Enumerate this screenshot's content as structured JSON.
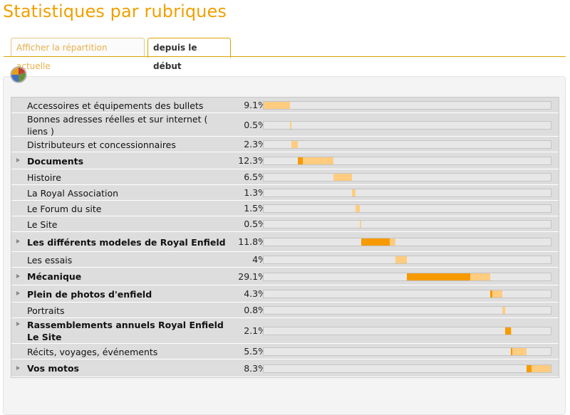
{
  "page_title": "Statistiques par rubriques",
  "tabs": [
    {
      "label": "Afficher la répartition actuelle",
      "active": false
    },
    {
      "label": "depuis le début",
      "active": true
    }
  ],
  "icons": {
    "pie": "pie-chart-icon",
    "expand": "triangle-right-icon"
  },
  "colors": {
    "accent": "#f0a000",
    "bar_light": "#ffcc80",
    "bar_dark": "#f69a00"
  },
  "rows": [
    {
      "label": "Accessoires et équipements des bullets",
      "pct": "9.1%",
      "bold": false,
      "expandable": false,
      "start": 0.0,
      "share": 0.091,
      "direct": 0.0
    },
    {
      "label": "Bonnes adresses réelles et sur internet ( liens )",
      "pct": "0.5%",
      "bold": false,
      "expandable": false,
      "start": 0.091,
      "share": 0.005,
      "direct": 0.0
    },
    {
      "label": "Distributeurs et concessionnaires",
      "pct": "2.3%",
      "bold": false,
      "expandable": false,
      "start": 0.096,
      "share": 0.023,
      "direct": 0.0
    },
    {
      "label": "Documents",
      "pct": "12.3%",
      "bold": true,
      "expandable": true,
      "start": 0.119,
      "share": 0.123,
      "direct": 0.018
    },
    {
      "label": "Histoire",
      "pct": "6.5%",
      "bold": false,
      "expandable": false,
      "start": 0.242,
      "share": 0.065,
      "direct": 0.0
    },
    {
      "label": "La Royal Association",
      "pct": "1.3%",
      "bold": false,
      "expandable": false,
      "start": 0.307,
      "share": 0.013,
      "direct": 0.0
    },
    {
      "label": "Le Forum du site",
      "pct": "1.5%",
      "bold": false,
      "expandable": false,
      "start": 0.32,
      "share": 0.015,
      "direct": 0.0
    },
    {
      "label": "Le Site",
      "pct": "0.5%",
      "bold": false,
      "expandable": false,
      "start": 0.335,
      "share": 0.005,
      "direct": 0.0
    },
    {
      "label": "Les différents modeles de Royal Enfield",
      "pct": "11.8%",
      "bold": true,
      "expandable": true,
      "start": 0.34,
      "share": 0.118,
      "direct": 0.1
    },
    {
      "label": "Les essais",
      "pct": "4%",
      "bold": false,
      "expandable": false,
      "start": 0.458,
      "share": 0.04,
      "direct": 0.0
    },
    {
      "label": "Mécanique",
      "pct": "29.1%",
      "bold": true,
      "expandable": true,
      "start": 0.498,
      "share": 0.291,
      "direct": 0.222
    },
    {
      "label": "Plein de photos d'enfield",
      "pct": "4.3%",
      "bold": true,
      "expandable": true,
      "start": 0.789,
      "share": 0.043,
      "direct": 0.008
    },
    {
      "label": "Portraits",
      "pct": "0.8%",
      "bold": false,
      "expandable": false,
      "start": 0.832,
      "share": 0.008,
      "direct": 0.0
    },
    {
      "label": "Rassemblements annuels Royal Enfield Le Site",
      "pct": "2.1%",
      "bold": true,
      "expandable": true,
      "start": 0.84,
      "share": 0.021,
      "direct": 0.021
    },
    {
      "label": "Récits, voyages, événements",
      "pct": "5.5%",
      "bold": false,
      "expandable": false,
      "start": 0.861,
      "share": 0.055,
      "direct": 0.004
    },
    {
      "label": "Vos motos",
      "pct": "8.3%",
      "bold": true,
      "expandable": true,
      "start": 0.916,
      "share": 0.083,
      "direct": 0.016
    }
  ]
}
